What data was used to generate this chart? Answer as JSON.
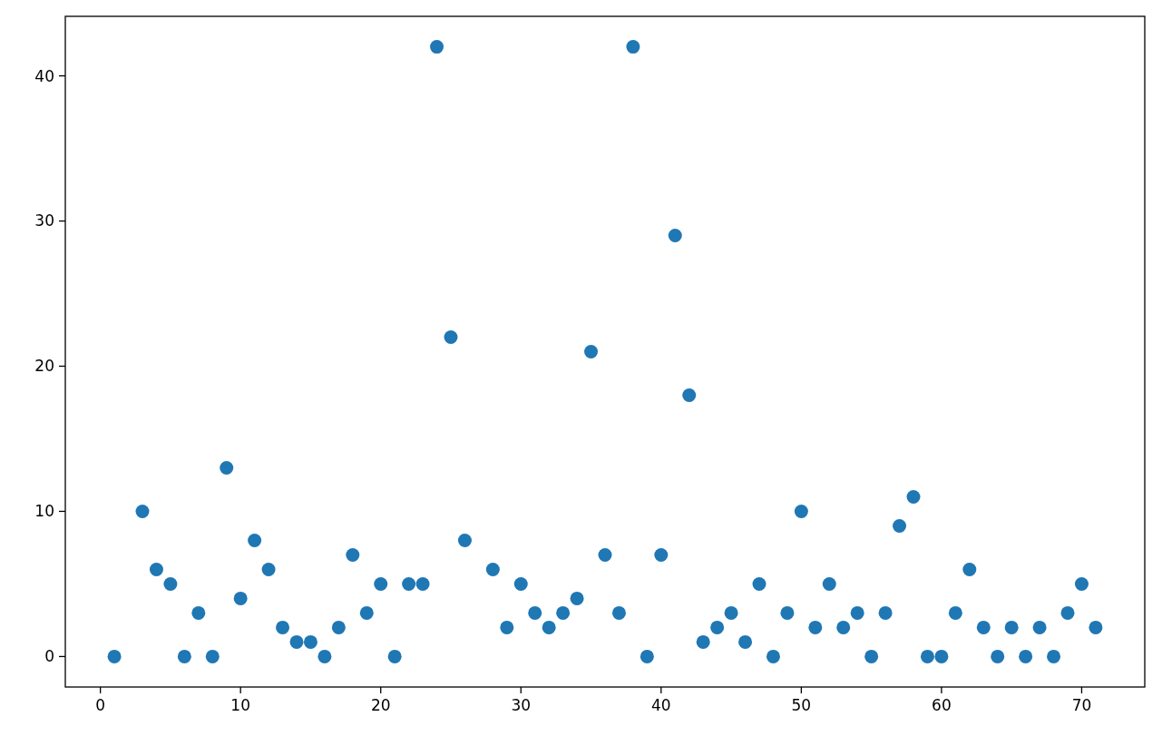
{
  "chart_data": {
    "type": "scatter",
    "x": [
      1,
      3,
      4,
      5,
      6,
      7,
      8,
      9,
      10,
      11,
      12,
      13,
      14,
      15,
      16,
      17,
      18,
      19,
      20,
      21,
      22,
      23,
      24,
      25,
      26,
      28,
      29,
      30,
      31,
      32,
      33,
      34,
      35,
      36,
      37,
      38,
      39,
      40,
      41,
      42,
      43,
      44,
      45,
      46,
      47,
      48,
      49,
      50,
      51,
      52,
      53,
      54,
      55,
      56,
      57,
      58,
      59,
      60,
      61,
      62,
      63,
      64,
      65,
      66,
      67,
      68,
      69,
      70,
      71
    ],
    "series": [
      {
        "color": "#1f77b4",
        "values": [
          0,
          10,
          6,
          5,
          0,
          3,
          0,
          13,
          4,
          8,
          6,
          2,
          1,
          1,
          0,
          2,
          7,
          3,
          5,
          0,
          5,
          5,
          42,
          22,
          8,
          6,
          2,
          5,
          3,
          2,
          3,
          4,
          21,
          7,
          3,
          42,
          0,
          7,
          29,
          18,
          1,
          2,
          3,
          1,
          5,
          0,
          3,
          10,
          2,
          5,
          2,
          3,
          0,
          3,
          9,
          11,
          0,
          0,
          3,
          6,
          2,
          0,
          2,
          0,
          2,
          0,
          3,
          5,
          2
        ]
      }
    ],
    "xlim": [
      -2.5,
      74.5
    ],
    "ylim": [
      -2.1,
      44.1
    ],
    "xticks": [
      0,
      10,
      20,
      30,
      40,
      50,
      60,
      70
    ],
    "yticks": [
      0,
      10,
      20,
      30,
      40
    ],
    "marker": "circle",
    "grid": false
  }
}
